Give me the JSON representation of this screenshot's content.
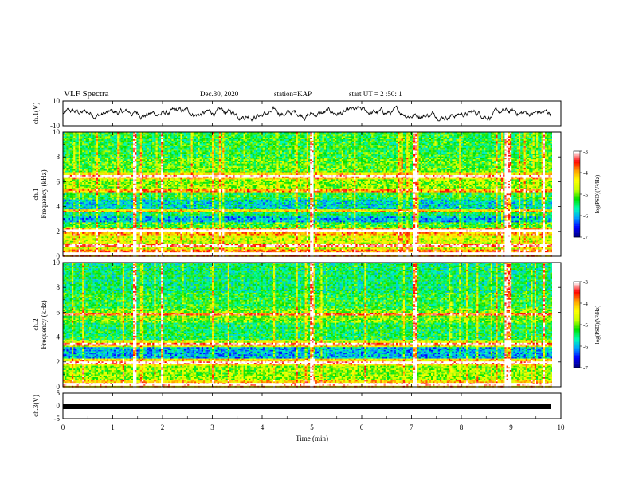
{
  "header": {
    "title": "VLF Spectra",
    "date": "Dec.30, 2020",
    "station": "station=KAP",
    "start": "start UT =  2 :50: 1"
  },
  "chart_data": [
    {
      "type": "line",
      "panel": "ch1-waveform",
      "ylabel": "ch.1(V)",
      "ylim": [
        -10,
        10
      ],
      "yticks": [
        "10",
        "-10"
      ],
      "xlim": [
        0,
        9.8
      ],
      "color": "#000000",
      "approx_amplitude_range": [
        -6,
        6
      ]
    },
    {
      "type": "heatmap",
      "panel": "ch1-spectrogram",
      "ylabel": "ch.1\nFrequency (kHz)",
      "ylim": [
        0,
        10
      ],
      "yticks": [
        "0",
        "2",
        "4",
        "6",
        "8",
        "10"
      ],
      "xlim": [
        0,
        9.8
      ],
      "z_range": [
        -7,
        -3
      ],
      "colorbar_label": "log(PSD)(V²/Hz)",
      "colorbar_ticks": [
        "-3",
        "-4",
        "-5",
        "-6",
        "-7"
      ],
      "colormap": [
        "#000080",
        "#0000ff",
        "#00a0ff",
        "#00ffb0",
        "#00e000",
        "#c8ff00",
        "#ffff00",
        "#ffa000",
        "#ff0000",
        "#ffffff"
      ],
      "bands_khz": [
        {
          "range": [
            0.0,
            0.6
          ],
          "level": -3.8
        },
        {
          "range": [
            0.6,
            1.8
          ],
          "level": -4.6
        },
        {
          "range": [
            1.8,
            2.3
          ],
          "level": -4.0
        },
        {
          "range": [
            2.3,
            2.8
          ],
          "level": -5.2
        },
        {
          "range": [
            2.8,
            3.3
          ],
          "level": -6.0
        },
        {
          "range": [
            3.3,
            3.7
          ],
          "level": -5.5
        },
        {
          "range": [
            3.7,
            4.6
          ],
          "level": -5.8
        },
        {
          "range": [
            4.6,
            5.4
          ],
          "level": -5.3
        },
        {
          "range": [
            5.4,
            6.2
          ],
          "level": -4.9
        },
        {
          "range": [
            6.2,
            6.8
          ],
          "level": -4.3
        },
        {
          "range": [
            6.8,
            8.0
          ],
          "level": -5.1
        },
        {
          "range": [
            8.0,
            10.0
          ],
          "level": -5.3
        }
      ],
      "lines_khz": [
        0.3,
        0.9,
        2.05,
        3.7,
        5.35,
        6.5
      ],
      "impulses_min": [
        1.42,
        1.97,
        4.97,
        7.05,
        8.88,
        8.96,
        9.65
      ]
    },
    {
      "type": "heatmap",
      "panel": "ch2-spectrogram",
      "ylabel": "ch.2\nFrequency (kHz)",
      "ylim": [
        0,
        10
      ],
      "yticks": [
        "0",
        "2",
        "4",
        "6",
        "8",
        "10"
      ],
      "xlim": [
        0,
        9.8
      ],
      "z_range": [
        -7,
        -3
      ],
      "colorbar_label": "log(PSD)(V²/Hz)",
      "colorbar_ticks": [
        "-3",
        "-4",
        "-5",
        "-6",
        "-7"
      ],
      "bands_khz": [
        {
          "range": [
            0.0,
            0.6
          ],
          "level": -4.2
        },
        {
          "range": [
            0.6,
            1.8
          ],
          "level": -4.9
        },
        {
          "range": [
            1.8,
            2.3
          ],
          "level": -4.3
        },
        {
          "range": [
            2.3,
            3.3
          ],
          "level": -6.0
        },
        {
          "range": [
            3.3,
            3.8
          ],
          "level": -4.6
        },
        {
          "range": [
            3.8,
            5.2
          ],
          "level": -5.4
        },
        {
          "range": [
            5.2,
            6.4
          ],
          "level": -5.0
        },
        {
          "range": [
            6.4,
            7.6
          ],
          "level": -5.3
        },
        {
          "range": [
            7.6,
            10.0
          ],
          "level": -5.5
        }
      ],
      "lines_khz": [
        0.3,
        1.95,
        3.5,
        5.9
      ],
      "impulses_min": [
        1.42,
        1.97,
        4.97,
        7.05,
        8.88,
        8.96,
        9.65
      ]
    },
    {
      "type": "line",
      "panel": "ch3-trace",
      "ylabel": "ch.3(V)",
      "ylim": [
        -5,
        5
      ],
      "yticks": [
        "5",
        "0",
        "-5"
      ],
      "xlim": [
        0,
        9.8
      ],
      "values_level": -0.3,
      "color": "#000000"
    }
  ],
  "xaxis": {
    "label": "Time (min)",
    "range": [
      0,
      10
    ],
    "ticks": [
      "0",
      "1",
      "2",
      "3",
      "4",
      "5",
      "6",
      "7",
      "8",
      "9",
      "10"
    ]
  }
}
